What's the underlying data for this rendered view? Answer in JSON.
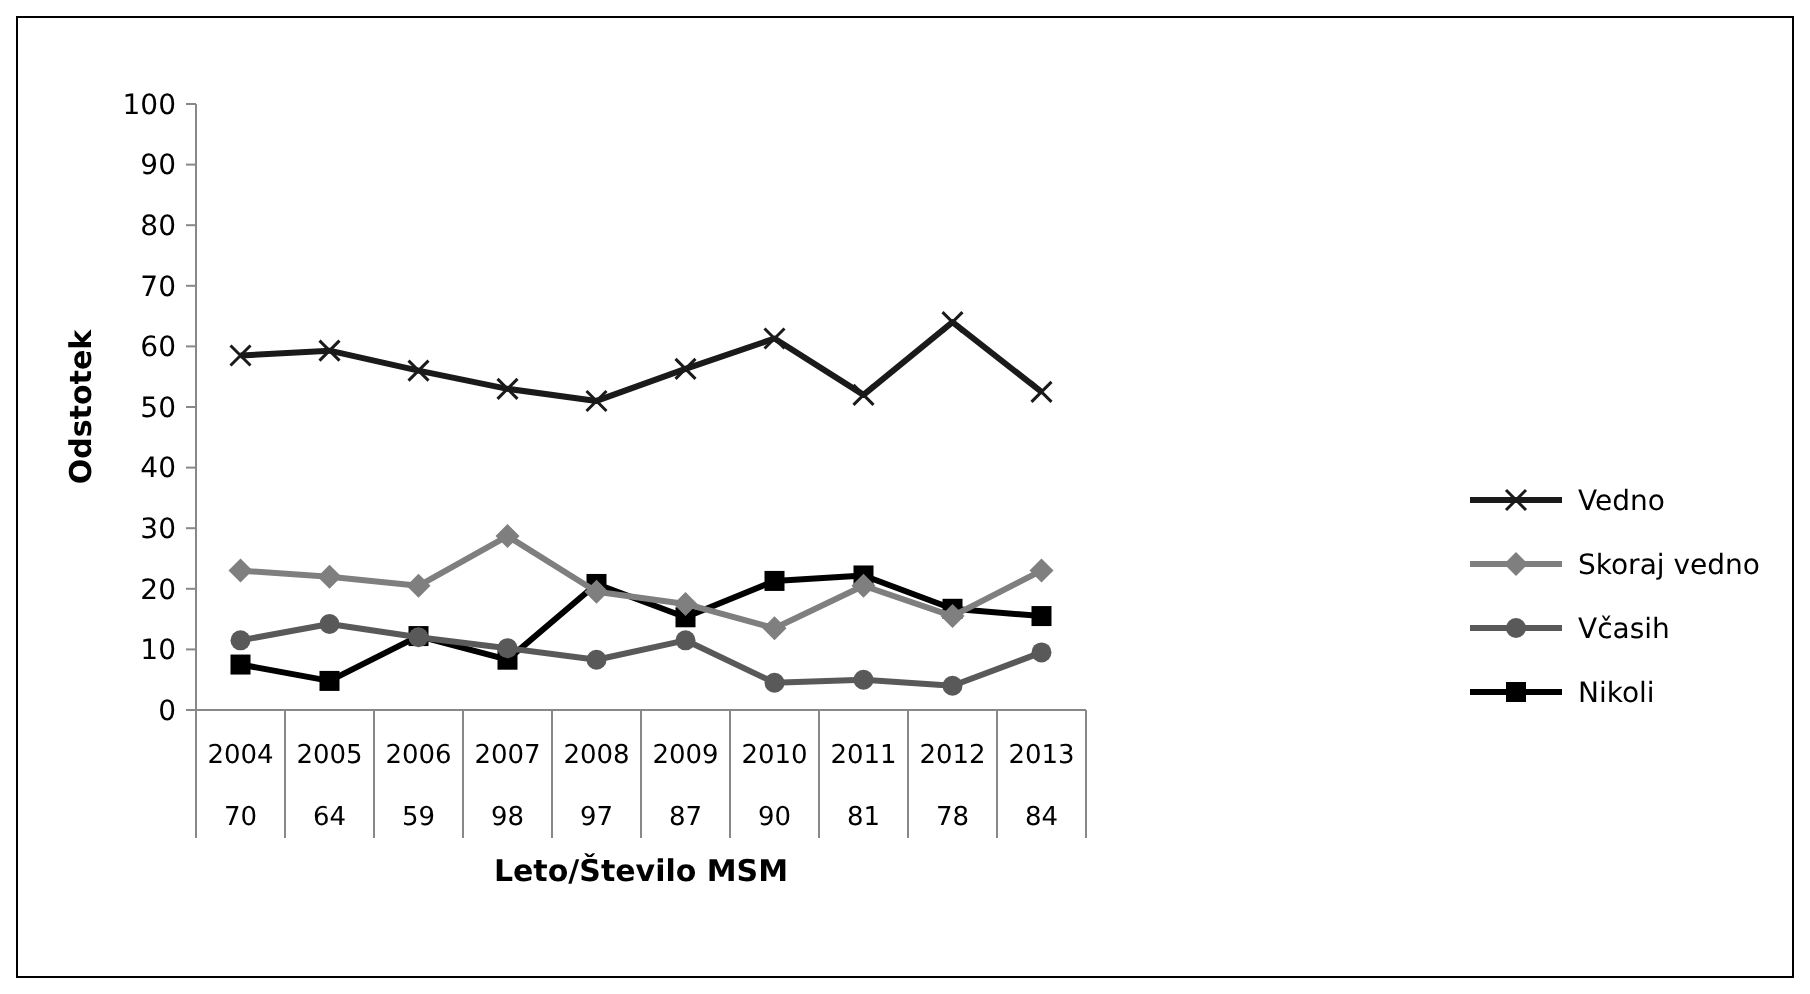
{
  "chart_data": {
    "type": "line",
    "xlabel": "Leto/Število MSM",
    "ylabel": "Odstotek",
    "categories": [
      "2004\n70",
      "2005\n64",
      "2006\n59",
      "2007\n98",
      "2008\n97",
      "2009\n87",
      "2010\n90",
      "2011\n81",
      "2012\n78",
      "2013\n84"
    ],
    "series": [
      {
        "name": "Vedno",
        "color": "#1a1a1a",
        "marker": "cross",
        "values": [
          58.5,
          59.3,
          56,
          53,
          51,
          56.3,
          61.3,
          52,
          64,
          52.5
        ]
      },
      {
        "name": "Skoraj vedno",
        "color": "#7f7f7f",
        "marker": "diamond",
        "values": [
          23,
          22,
          20.5,
          28.7,
          19.5,
          17.5,
          13.5,
          20.5,
          15.5,
          23
        ]
      },
      {
        "name": "Včasih",
        "color": "#595959",
        "marker": "circle",
        "values": [
          11.5,
          14.2,
          12,
          10.2,
          8.3,
          11.5,
          4.5,
          5,
          4,
          9.5
        ]
      },
      {
        "name": "Nikoli",
        "color": "#000000",
        "marker": "square",
        "values": [
          7.5,
          4.8,
          12.2,
          8.3,
          20.8,
          15.3,
          21.3,
          22.2,
          16.7,
          15.5
        ]
      }
    ],
    "ylim": [
      0,
      100
    ],
    "yticks": [
      0,
      10,
      20,
      30,
      40,
      50,
      60,
      70,
      80,
      90,
      100
    ],
    "grid": false,
    "legend": "right"
  }
}
